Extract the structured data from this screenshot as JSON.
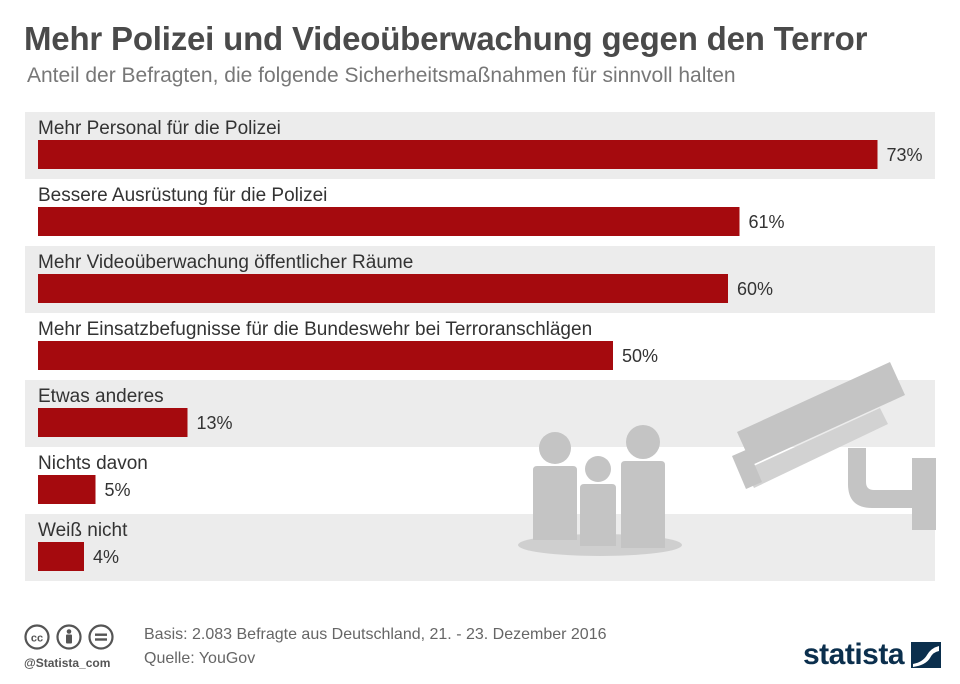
{
  "chart_data": {
    "type": "bar",
    "orientation": "horizontal",
    "title": "Mehr Polizei und Videoüberwachung gegen den Terror",
    "subtitle": "Anteil der Befragten, die folgende Sicherheitsmaßnahmen für sinnvoll halten",
    "categories": [
      "Mehr Personal für die Polizei",
      "Bessere Ausrüstung für die Polizei",
      "Mehr Videoüberwachung öffentlicher Räume",
      "Mehr Einsatzbefugnisse für die Bundeswehr bei Terroranschlägen",
      "Etwas anderes",
      "Nichts davon",
      "Weiß nicht"
    ],
    "values": [
      73,
      61,
      60,
      50,
      13,
      5,
      4
    ],
    "value_labels": [
      "73%",
      "61%",
      "60%",
      "50%",
      "13%",
      "5%",
      "4%"
    ],
    "unit": "%",
    "grid": false,
    "legend": "none",
    "bar_color": "#a50a0e",
    "row_band_color": "#ececec"
  },
  "footer": {
    "basis": "Basis: 2.083 Befragte aus Deutschland, 21. - 23. Dezember 2016",
    "source": "Quelle: YouGov",
    "handle": "@Statista_com",
    "brand": "statista"
  },
  "icons": {
    "license": [
      "cc-icon",
      "attribution-icon",
      "no-derivatives-icon"
    ],
    "illustration": [
      "family-icon",
      "surveillance-camera-icon"
    ],
    "brand_mark": "statista-logo-icon"
  }
}
